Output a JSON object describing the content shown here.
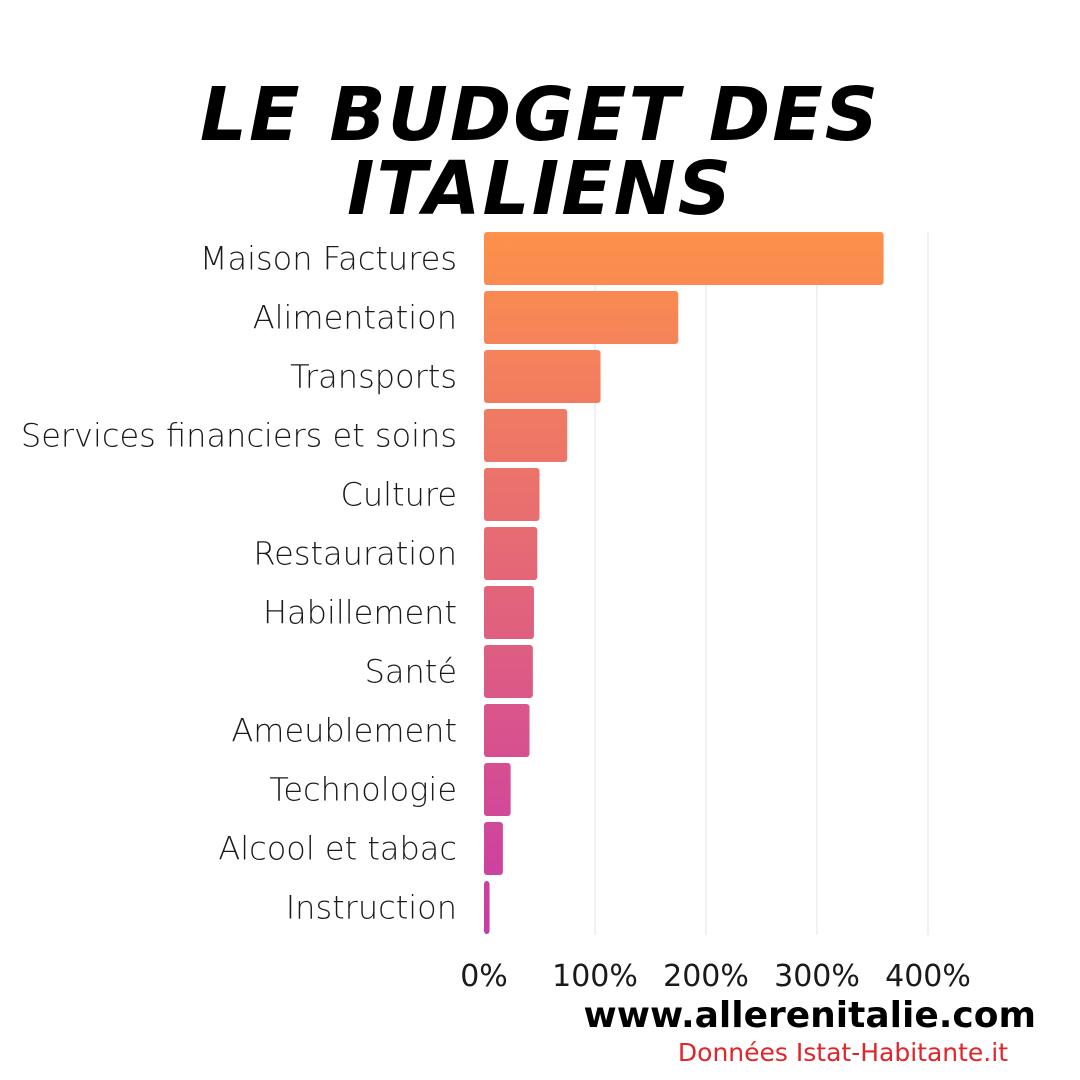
{
  "title": "LE BUDGET DES ITALIENS",
  "footer": {
    "website": "www.allerenitalie.com",
    "source": "Données Istat-Habitante.it"
  },
  "colors": {
    "bar_gradient_top": "#fd914a",
    "bar_gradient_bottom": "#c93aa8",
    "grid": "#e3e3e3"
  },
  "chart_data": {
    "type": "bar",
    "orientation": "horizontal",
    "title": "LE BUDGET DES ITALIENS",
    "xlabel": "",
    "ylabel": "",
    "categories": [
      "Maison Factures",
      "Alimentation",
      "Transports",
      "Services financiers et soins",
      "Culture",
      "Restauration",
      "Habillement",
      "Santé",
      "Ameublement",
      "Technologie",
      "Alcool et tabac",
      "Instruction"
    ],
    "values": [
      360,
      175,
      105,
      75,
      50,
      48,
      45,
      44,
      41,
      24,
      17,
      5
    ],
    "xlim": [
      0,
      400
    ],
    "xticks": [
      "0%",
      "100%",
      "200%",
      "300%",
      "400%"
    ],
    "xtick_values": [
      0,
      100,
      200,
      300,
      400
    ],
    "grid": true,
    "legend": "none"
  }
}
